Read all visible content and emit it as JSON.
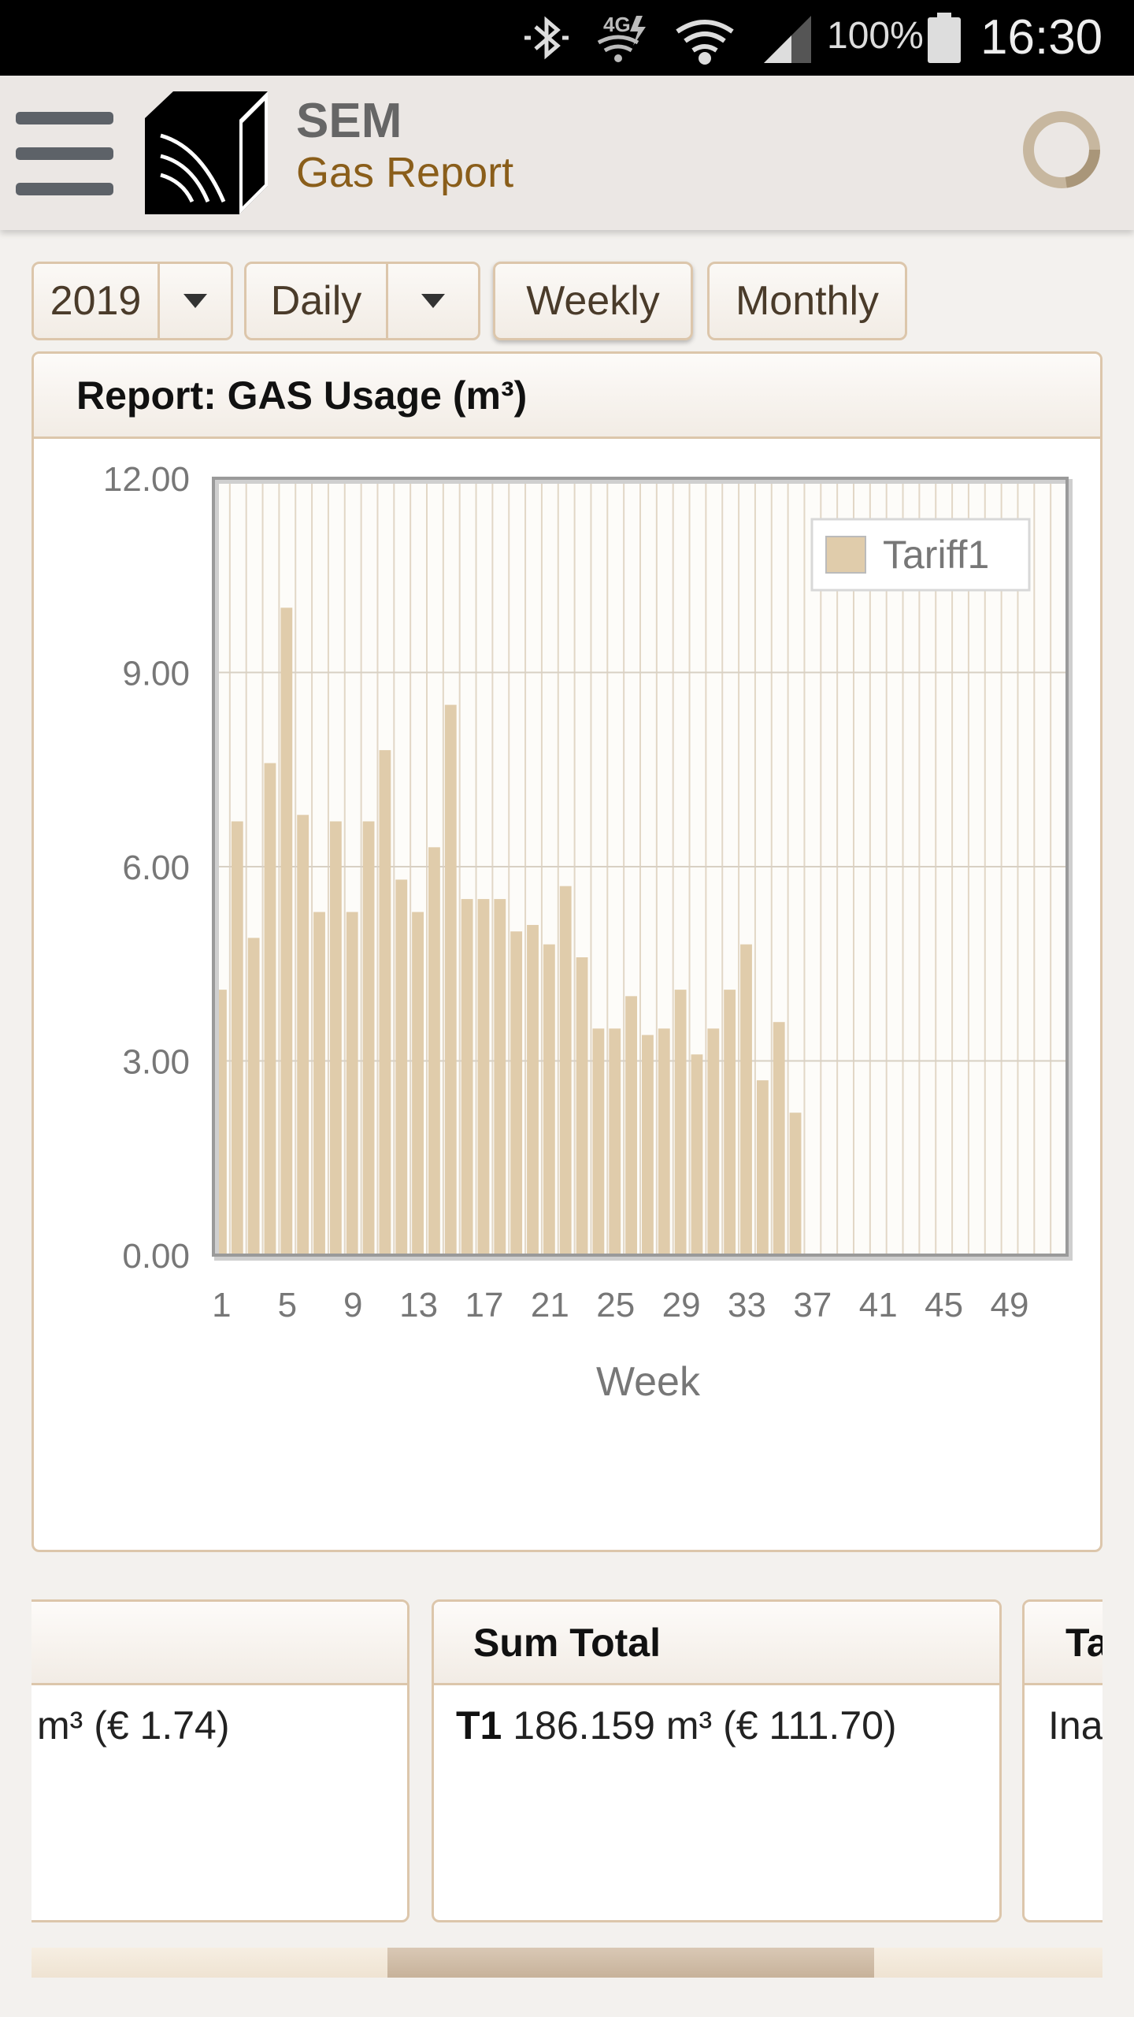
{
  "status_bar": {
    "battery_percent": "100%",
    "time": "16:30",
    "icons": [
      "bluetooth-icon",
      "4g-data-icon",
      "wifi-icon",
      "signal-icon",
      "battery-icon"
    ]
  },
  "app_bar": {
    "title": "SEM",
    "subtitle": "Gas Report",
    "icons": [
      "menu-icon",
      "cube-logo-icon",
      "loading-spinner-icon"
    ]
  },
  "toolbar": {
    "year_select": "2019",
    "period_select": "Daily",
    "weekly_button": "Weekly",
    "monthly_button": "Monthly"
  },
  "report": {
    "title": "Report: GAS Usage (m³)"
  },
  "colors": {
    "bar": "#e0ccab",
    "accent": "#8a5e1a",
    "border": "#dcc6ab"
  },
  "chart_data": {
    "type": "bar",
    "title": "",
    "xlabel": "Week",
    "ylabel": "",
    "ylim": [
      0,
      12
    ],
    "yticks": [
      "0.00",
      "3.00",
      "6.00",
      "9.00",
      "12.00"
    ],
    "xticks": [
      "1",
      "5",
      "9",
      "13",
      "17",
      "21",
      "25",
      "29",
      "33",
      "37",
      "41",
      "45",
      "49"
    ],
    "legend": "top-right",
    "grid": true,
    "categories": [
      1,
      2,
      3,
      4,
      5,
      6,
      7,
      8,
      9,
      10,
      11,
      12,
      13,
      14,
      15,
      16,
      17,
      18,
      19,
      20,
      21,
      22,
      23,
      24,
      25,
      26,
      27,
      28,
      29,
      30,
      31,
      32,
      33,
      34,
      35,
      36,
      37,
      38,
      39,
      40,
      41,
      42,
      43,
      44,
      45,
      46,
      47,
      48,
      49,
      50,
      51,
      52
    ],
    "series": [
      {
        "name": "Tariff1",
        "values": [
          4.1,
          6.7,
          4.9,
          7.6,
          10.0,
          6.8,
          5.3,
          6.7,
          5.3,
          6.7,
          7.8,
          5.8,
          5.3,
          6.3,
          8.5,
          5.5,
          5.5,
          5.5,
          5.0,
          5.1,
          4.8,
          5.7,
          4.6,
          3.5,
          3.5,
          4.0,
          3.4,
          3.5,
          4.1,
          3.1,
          3.5,
          4.1,
          4.8,
          2.7,
          3.6,
          2.2,
          0,
          0,
          0,
          0,
          0,
          0,
          0,
          0,
          0,
          0,
          0,
          0,
          0,
          0,
          0,
          0
        ]
      }
    ]
  },
  "cards": [
    {
      "header": "",
      "body_prefix": "",
      "body_text": "m³ (€ 1.74)"
    },
    {
      "header": "Sum Total",
      "body_prefix": "T1",
      "body_text": " 186.159 m³ (€ 111.70)"
    },
    {
      "header": "Ta",
      "body_prefix": "",
      "body_text": "Ina"
    }
  ]
}
